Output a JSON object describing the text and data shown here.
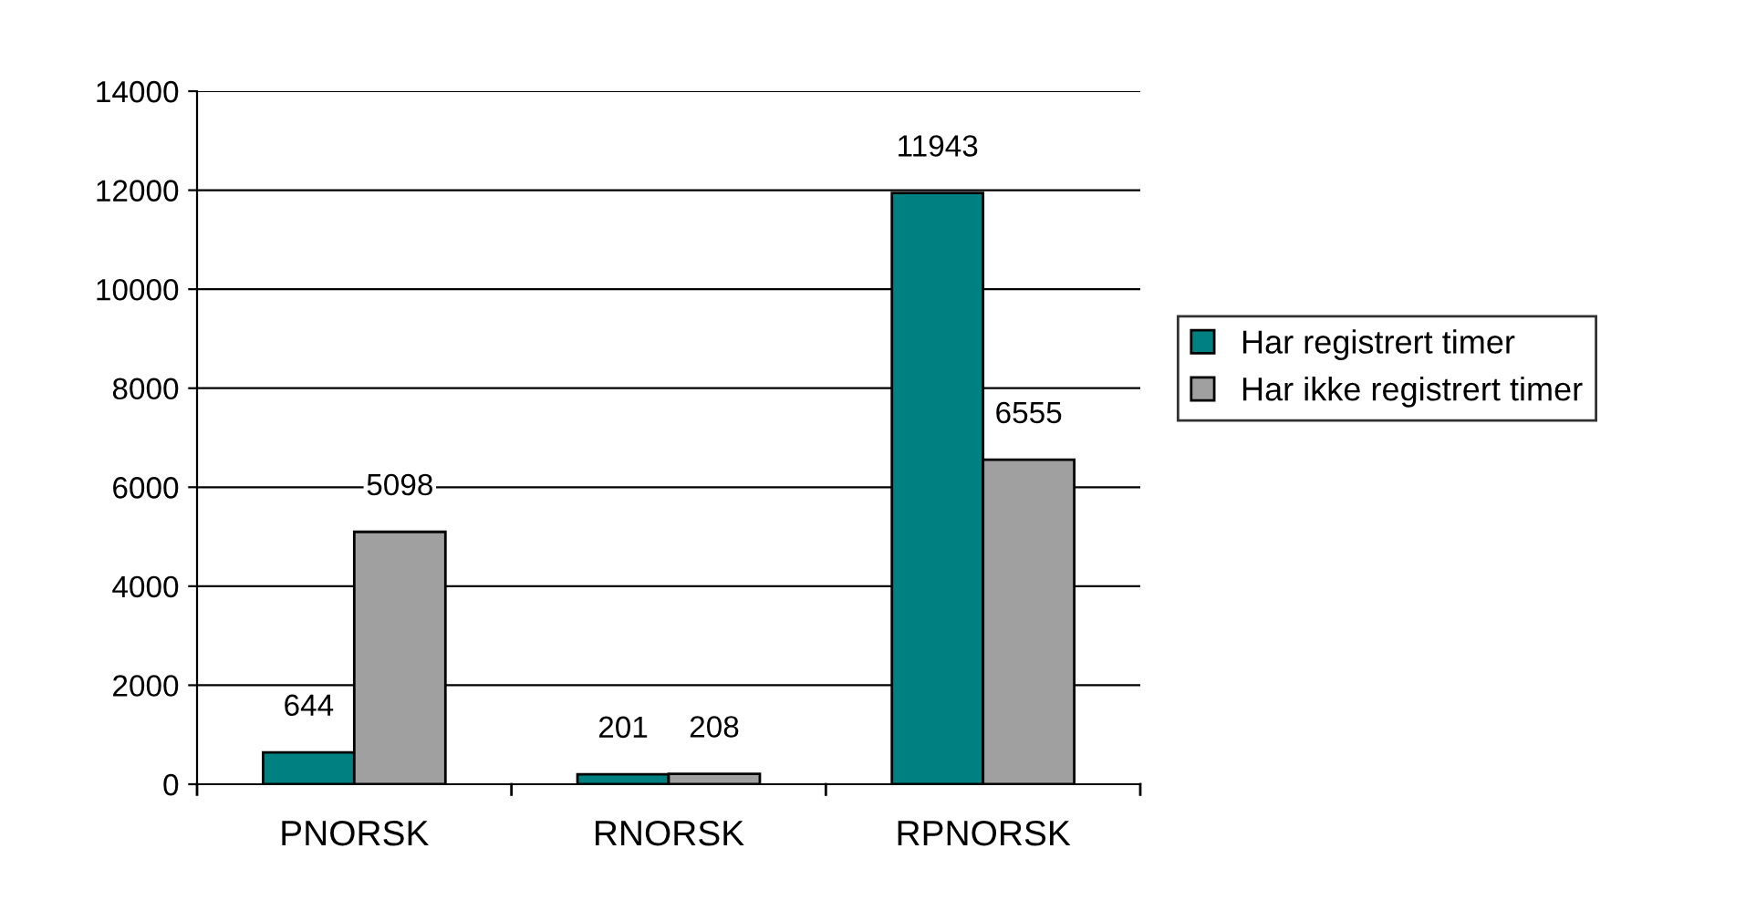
{
  "chart_data": {
    "type": "bar",
    "categories": [
      "PNORSK",
      "RNORSK",
      "RPNORSK"
    ],
    "series": [
      {
        "name": "Har registrert timer",
        "color": "#008080",
        "values": [
          644,
          201,
          11943
        ]
      },
      {
        "name": "Har ikke registrert timer",
        "color": "#a0a0a0",
        "values": [
          5098,
          208,
          6555
        ]
      }
    ],
    "ylim": [
      0,
      14000
    ],
    "yticks": [
      0,
      2000,
      4000,
      6000,
      8000,
      10000,
      12000,
      14000
    ],
    "grid": "y",
    "legend": "right",
    "data_labels": true
  }
}
